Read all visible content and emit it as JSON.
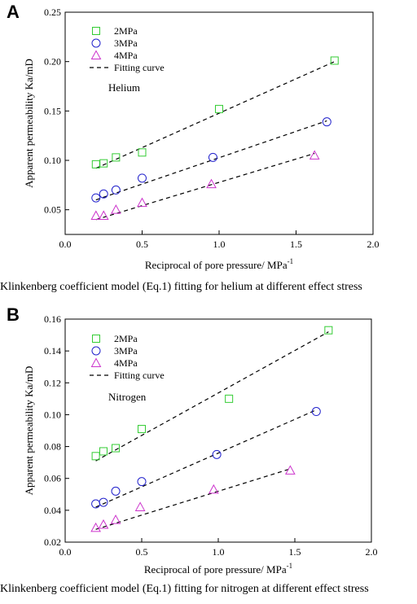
{
  "chart_data": [
    {
      "type": "scatter",
      "panel_label": "A",
      "gas_label": "Helium",
      "xlabel": "Reciprocal of pore pressure/ MPa",
      "xlabel_sup": "-1",
      "ylabel": "Apparent permeability Ka/mD",
      "xlim": [
        0.0,
        2.0
      ],
      "ylim": [
        0.025,
        0.25
      ],
      "xticks": [
        "0.0",
        "0.5",
        "1.0",
        "1.5",
        "2.0"
      ],
      "yticks": [
        "0.05",
        "0.10",
        "0.15",
        "0.20",
        "0.25"
      ],
      "legend_position": "top-left",
      "series": [
        {
          "name": "2MPa",
          "marker": "square",
          "color": "#33cc33",
          "x": [
            0.2,
            0.25,
            0.33,
            0.5,
            1.0,
            1.75
          ],
          "y": [
            0.096,
            0.097,
            0.103,
            0.108,
            0.152,
            0.201
          ]
        },
        {
          "name": "3MPa",
          "marker": "circle",
          "color": "#2222cc",
          "x": [
            0.2,
            0.25,
            0.33,
            0.5,
            0.96,
            1.7
          ],
          "y": [
            0.062,
            0.066,
            0.07,
            0.082,
            0.103,
            0.139
          ]
        },
        {
          "name": "4MPa",
          "marker": "triangle",
          "color": "#cc33cc",
          "x": [
            0.2,
            0.25,
            0.33,
            0.5,
            0.95,
            1.62
          ],
          "y": [
            0.044,
            0.044,
            0.05,
            0.057,
            0.076,
            0.105
          ]
        }
      ],
      "fit_name": "Fitting curve",
      "fits": [
        {
          "x": [
            0.2,
            1.75
          ],
          "y": [
            0.092,
            0.2
          ]
        },
        {
          "x": [
            0.2,
            1.7
          ],
          "y": [
            0.06,
            0.14
          ]
        },
        {
          "x": [
            0.2,
            1.62
          ],
          "y": [
            0.04,
            0.107
          ]
        }
      ]
    },
    {
      "type": "scatter",
      "panel_label": "B",
      "gas_label": "Nitrogen",
      "xlabel": "Reciprocal of pore pressure/ MPa",
      "xlabel_sup": "-1",
      "ylabel": "Apparent permeability Ka/mD",
      "xlim": [
        0.0,
        2.0
      ],
      "ylim": [
        0.02,
        0.16
      ],
      "xticks": [
        "0.0",
        "0.5",
        "1.0",
        "1.5",
        "2.0"
      ],
      "yticks": [
        "0.02",
        "0.04",
        "0.06",
        "0.08",
        "0.10",
        "0.12",
        "0.14",
        "0.16"
      ],
      "legend_position": "top-left",
      "series": [
        {
          "name": "2MPa",
          "marker": "square",
          "color": "#33cc33",
          "x": [
            0.2,
            0.25,
            0.33,
            0.5,
            1.07,
            1.72
          ],
          "y": [
            0.074,
            0.077,
            0.079,
            0.091,
            0.11,
            0.153
          ]
        },
        {
          "name": "3MPa",
          "marker": "circle",
          "color": "#2222cc",
          "x": [
            0.2,
            0.25,
            0.33,
            0.5,
            0.99,
            1.64
          ],
          "y": [
            0.044,
            0.045,
            0.052,
            0.058,
            0.075,
            0.102
          ]
        },
        {
          "name": "4MPa",
          "marker": "triangle",
          "color": "#cc33cc",
          "x": [
            0.2,
            0.25,
            0.33,
            0.49,
            0.97,
            1.47
          ],
          "y": [
            0.029,
            0.031,
            0.034,
            0.042,
            0.053,
            0.065
          ]
        }
      ],
      "fit_name": "Fitting curve",
      "fits": [
        {
          "x": [
            0.2,
            1.72
          ],
          "y": [
            0.071,
            0.152
          ]
        },
        {
          "x": [
            0.2,
            1.64
          ],
          "y": [
            0.042,
            0.103
          ]
        },
        {
          "x": [
            0.2,
            1.47
          ],
          "y": [
            0.028,
            0.066
          ]
        }
      ]
    }
  ],
  "captions": {
    "a": "Klinkenberg coefficient model (Eq.1) fitting for helium at different effect stress",
    "b": "Klinkenberg coefficient model (Eq.1) fitting for nitrogen at different effect stress"
  }
}
